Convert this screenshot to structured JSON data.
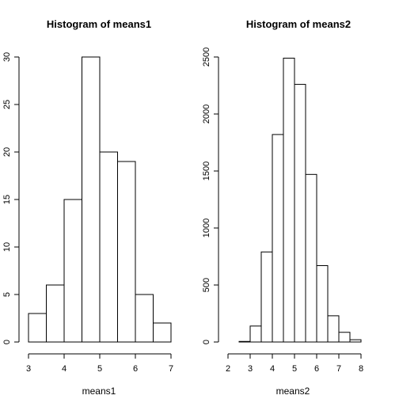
{
  "chart_data": [
    {
      "type": "bar",
      "title": "Histogram of means1",
      "xlabel": "means1",
      "ylabel": "",
      "bins": [
        [
          3,
          3.5
        ],
        [
          3.5,
          4
        ],
        [
          4,
          4.5
        ],
        [
          4.5,
          5
        ],
        [
          5,
          5.5
        ],
        [
          5.5,
          6
        ],
        [
          6,
          6.5
        ],
        [
          6.5,
          7
        ]
      ],
      "values": [
        3,
        6,
        15,
        30,
        20,
        19,
        5,
        2
      ],
      "xlim": [
        3,
        7
      ],
      "ylim": [
        0,
        30
      ],
      "xticks": [
        "3",
        "4",
        "5",
        "6",
        "7"
      ],
      "yticks": [
        "0",
        "5",
        "10",
        "15",
        "20",
        "25",
        "30"
      ],
      "grid": false
    },
    {
      "type": "bar",
      "title": "Histogram of means2",
      "xlabel": "means2",
      "ylabel": "",
      "bins": [
        [
          2.5,
          3
        ],
        [
          3,
          3.5
        ],
        [
          3.5,
          4
        ],
        [
          4,
          4.5
        ],
        [
          4.5,
          5
        ],
        [
          5,
          5.5
        ],
        [
          5.5,
          6
        ],
        [
          6,
          6.5
        ],
        [
          6.5,
          7
        ],
        [
          7,
          7.5
        ],
        [
          7.5,
          8
        ]
      ],
      "values": [
        5,
        140,
        790,
        1820,
        2490,
        2260,
        1470,
        670,
        230,
        85,
        20
      ],
      "xlim": [
        2,
        8
      ],
      "ylim": [
        0,
        2500
      ],
      "xticks": [
        "2",
        "3",
        "4",
        "5",
        "6",
        "7",
        "8"
      ],
      "yticks": [
        "0",
        "500",
        "1000",
        "1500",
        "2000",
        "2500"
      ],
      "grid": false
    }
  ]
}
